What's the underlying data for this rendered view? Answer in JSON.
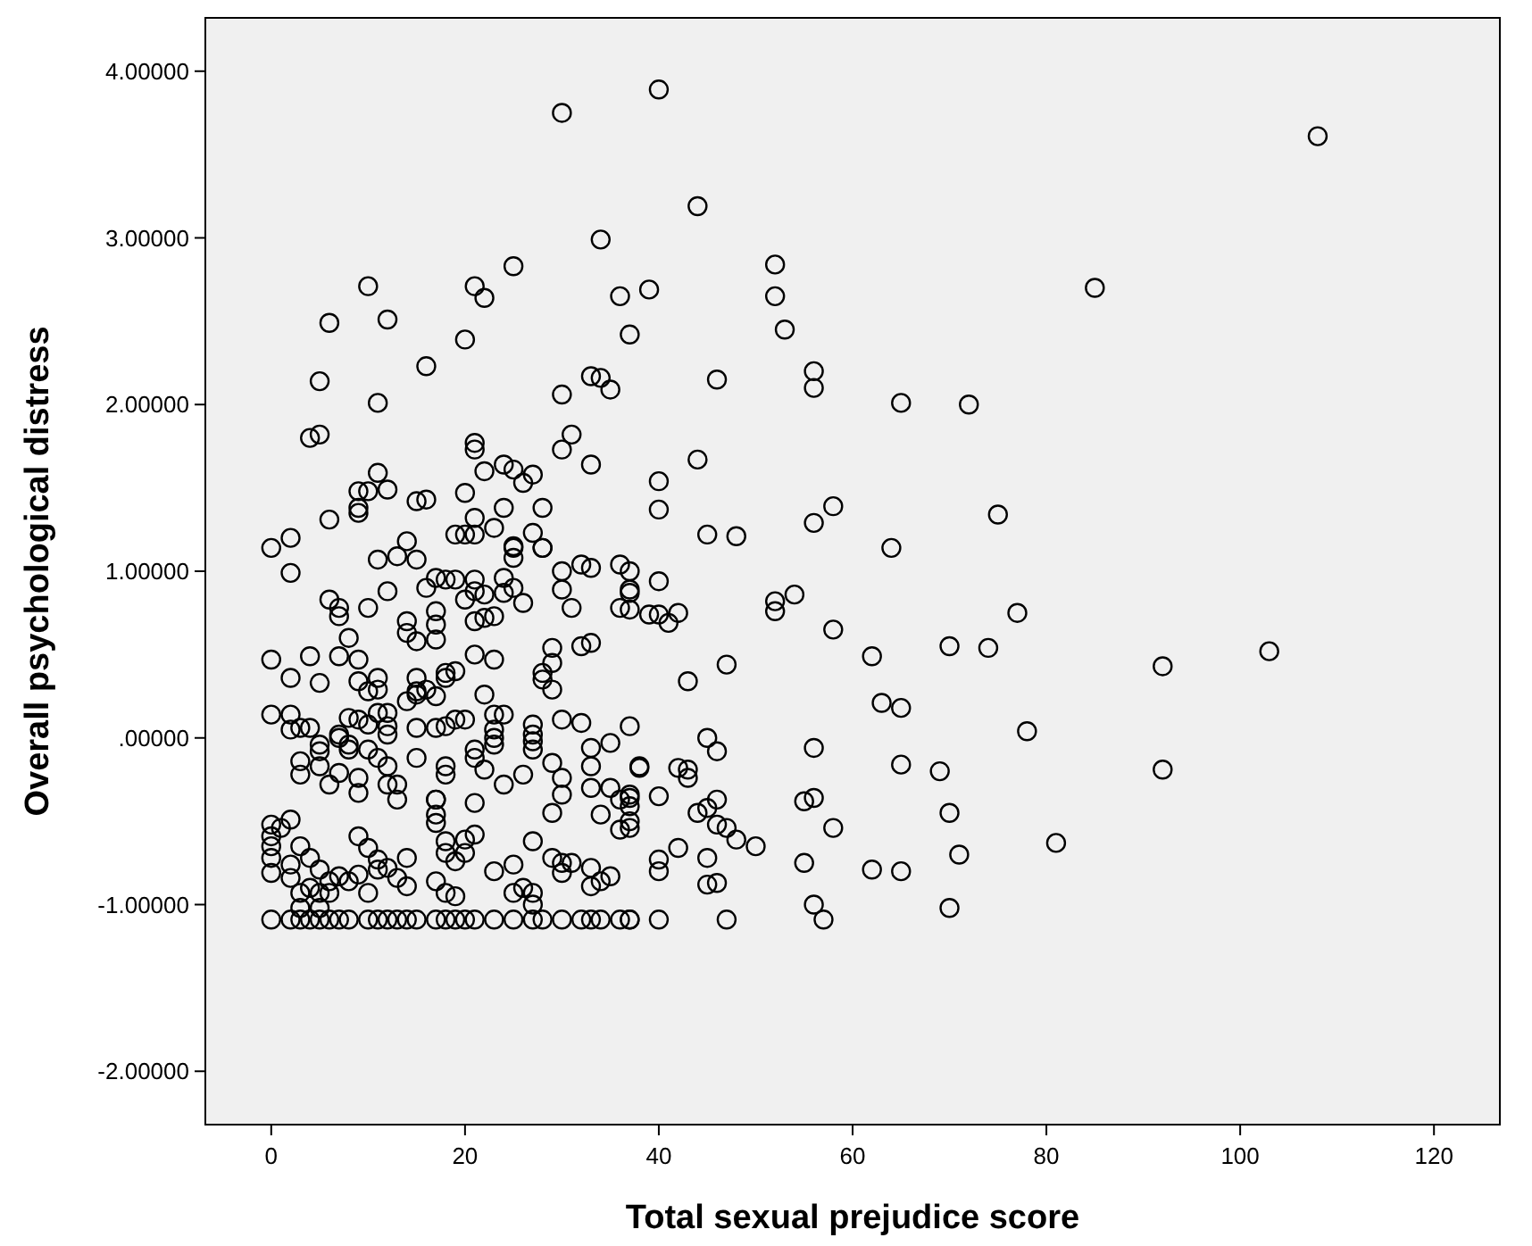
{
  "chart_data": {
    "type": "scatter",
    "xlabel": "Total sexual prejudice score",
    "ylabel": "Overall psychological distress",
    "xlim": [
      -6.8,
      126.8
    ],
    "ylim": [
      -2.32,
      4.32
    ],
    "xticks": [
      0,
      20,
      40,
      60,
      80,
      100,
      120
    ],
    "yticks": [
      {
        "value": -2,
        "label": "-2.00000"
      },
      {
        "value": -1,
        "label": "-1.00000"
      },
      {
        "value": 0,
        "label": ".00000"
      },
      {
        "value": 1,
        "label": "1.00000"
      },
      {
        "value": 2,
        "label": "2.00000"
      },
      {
        "value": 3,
        "label": "3.00000"
      },
      {
        "value": 4,
        "label": "4.00000"
      }
    ],
    "grid": false,
    "marker": "circle",
    "series": [
      {
        "color": "#000000",
        "x": [
          40,
          108,
          44,
          52,
          52,
          53,
          85,
          39,
          46,
          56,
          56,
          65,
          72,
          44,
          40,
          40,
          45,
          48,
          56,
          58,
          64,
          75,
          40,
          52,
          52,
          54,
          77,
          58,
          62,
          70,
          74,
          92,
          103,
          47,
          43,
          63,
          65,
          78,
          92,
          45,
          46,
          56,
          65,
          69,
          70,
          81,
          71,
          70,
          55,
          62,
          65,
          56,
          57,
          55,
          56,
          58,
          50,
          48,
          47,
          46,
          46,
          44,
          45,
          42,
          40,
          40,
          45,
          45,
          46,
          40,
          47,
          40,
          43,
          42,
          43,
          38,
          39,
          40,
          41,
          42,
          37,
          37,
          37,
          37,
          37,
          37,
          37,
          38,
          30,
          34,
          25,
          10,
          21,
          22,
          36,
          37,
          6,
          12,
          20,
          5,
          16,
          11,
          33,
          34,
          35,
          30,
          31,
          30,
          33,
          4,
          5,
          11,
          21,
          21,
          22,
          24,
          25,
          26,
          27,
          9,
          10,
          12,
          9,
          9,
          6,
          15,
          16,
          20,
          21,
          24,
          28,
          19,
          20,
          21,
          23,
          14,
          27,
          25,
          28,
          0,
          2,
          2,
          11,
          13,
          15,
          12,
          6,
          7,
          7,
          10,
          8,
          14,
          14,
          15,
          17,
          17,
          17,
          16,
          17,
          18,
          19,
          21,
          21,
          22,
          24,
          24,
          25,
          26,
          20,
          21,
          22,
          23,
          25,
          25,
          28,
          30,
          30,
          31,
          32,
          33,
          36,
          37,
          37,
          36,
          32,
          33,
          29,
          29,
          28,
          28,
          29,
          0,
          2,
          4,
          5,
          7,
          9,
          9,
          11,
          10,
          11,
          15,
          15,
          16,
          17,
          18,
          19,
          18,
          21,
          23,
          22,
          0,
          2,
          2,
          3,
          4,
          8,
          9,
          10,
          11,
          12,
          12,
          12,
          14,
          15,
          15,
          17,
          18,
          19,
          20,
          23,
          24,
          23,
          23,
          23,
          27,
          27,
          27,
          27,
          30,
          32,
          35,
          5,
          5,
          7,
          7,
          8,
          3,
          3,
          5,
          6,
          7,
          8,
          9,
          9,
          10,
          11,
          12,
          12,
          13,
          13,
          15,
          18,
          17,
          18,
          21,
          21,
          22,
          24,
          21,
          26,
          29,
          30,
          30,
          29,
          33,
          33,
          33,
          35,
          34,
          37,
          36,
          37,
          36,
          0,
          0,
          0,
          0,
          0,
          1,
          2,
          2,
          2,
          3,
          4,
          5,
          6,
          7,
          8,
          3,
          4,
          5,
          6,
          9,
          10,
          11,
          12,
          13,
          14,
          14,
          9,
          10,
          11,
          17,
          17,
          17,
          18,
          18,
          19,
          20,
          20,
          21,
          17,
          18,
          19,
          23,
          25,
          25,
          26,
          27,
          27,
          30,
          30,
          31,
          33,
          33,
          34,
          35,
          27,
          29,
          3,
          5,
          0,
          2,
          3,
          4,
          5,
          6,
          7,
          8,
          10,
          11,
          12,
          13,
          14,
          15,
          17,
          18,
          19,
          20,
          21,
          23,
          25,
          27,
          28,
          30,
          32,
          33,
          34,
          36,
          37
        ],
        "values": [
          3.89,
          3.61,
          3.19,
          2.84,
          2.65,
          2.45,
          2.7,
          2.69,
          2.15,
          2.2,
          2.1,
          2.01,
          2.0,
          1.67,
          1.54,
          1.37,
          1.22,
          1.21,
          1.29,
          1.39,
          1.14,
          1.34,
          0.94,
          0.82,
          0.76,
          0.86,
          0.75,
          0.65,
          0.49,
          0.55,
          0.54,
          0.43,
          0.52,
          0.44,
          0.34,
          0.21,
          0.18,
          0.04,
          -0.19,
          0.0,
          -0.08,
          -0.06,
          -0.16,
          -0.2,
          -0.45,
          -0.63,
          -0.7,
          -1.02,
          -0.75,
          -0.79,
          -0.8,
          -1.0,
          -1.09,
          -0.38,
          -0.36,
          -0.54,
          -0.65,
          -0.61,
          -0.54,
          -0.52,
          -0.37,
          -0.45,
          -0.42,
          -0.66,
          -0.73,
          -0.8,
          -0.72,
          -0.88,
          -0.87,
          -1.09,
          -1.09,
          -0.35,
          -0.24,
          -0.18,
          -0.19,
          -0.18,
          0.74,
          0.74,
          0.69,
          0.75,
          0.87,
          0.77,
          0.07,
          -0.36,
          -0.41,
          -0.54,
          -1.09,
          -0.17,
          3.75,
          2.99,
          2.83,
          2.71,
          2.71,
          2.64,
          2.65,
          2.42,
          2.49,
          2.51,
          2.39,
          2.14,
          2.23,
          2.01,
          2.17,
          2.16,
          2.09,
          2.06,
          1.82,
          1.73,
          1.64,
          1.8,
          1.82,
          1.59,
          1.77,
          1.73,
          1.6,
          1.64,
          1.61,
          1.53,
          1.58,
          1.48,
          1.48,
          1.49,
          1.38,
          1.35,
          1.31,
          1.42,
          1.43,
          1.47,
          1.32,
          1.38,
          1.38,
          1.22,
          1.22,
          1.22,
          1.26,
          1.18,
          1.23,
          1.14,
          1.14,
          1.14,
          1.2,
          0.99,
          1.07,
          1.09,
          1.07,
          0.88,
          0.83,
          0.78,
          0.73,
          0.78,
          0.6,
          0.7,
          0.63,
          0.58,
          0.76,
          0.68,
          0.59,
          0.9,
          0.96,
          0.95,
          0.95,
          0.95,
          0.88,
          0.86,
          0.96,
          0.87,
          0.9,
          0.81,
          0.83,
          0.7,
          0.72,
          0.73,
          1.15,
          1.08,
          1.14,
          1.0,
          0.89,
          0.78,
          1.04,
          1.02,
          1.04,
          1.0,
          0.89,
          0.78,
          0.55,
          0.57,
          0.54,
          0.45,
          0.39,
          0.35,
          0.29,
          0.47,
          0.36,
          0.49,
          0.33,
          0.49,
          0.47,
          0.34,
          0.36,
          0.28,
          0.29,
          0.36,
          0.28,
          0.29,
          0.25,
          0.39,
          0.4,
          0.36,
          0.5,
          0.47,
          0.26,
          0.14,
          0.14,
          0.05,
          0.06,
          0.06,
          0.12,
          0.11,
          0.08,
          0.15,
          0.15,
          0.07,
          0.02,
          0.22,
          0.26,
          0.06,
          0.06,
          0.07,
          0.11,
          0.11,
          0.14,
          0.14,
          0.05,
          0.0,
          -0.04,
          0.08,
          0.02,
          -0.02,
          -0.07,
          0.11,
          0.09,
          -0.03,
          -0.04,
          -0.08,
          0.02,
          0.0,
          -0.04,
          -0.14,
          -0.22,
          -0.17,
          -0.28,
          -0.21,
          -0.07,
          -0.24,
          -0.33,
          -0.07,
          -0.12,
          -0.17,
          -0.28,
          -0.28,
          -0.37,
          -0.12,
          -0.22,
          -0.37,
          -0.17,
          -0.07,
          -0.12,
          -0.19,
          -0.28,
          -0.39,
          -0.22,
          -0.15,
          -0.24,
          -0.34,
          -0.45,
          -0.06,
          -0.17,
          -0.3,
          -0.3,
          -0.46,
          -0.34,
          -0.37,
          -0.5,
          -0.55,
          -0.52,
          -0.59,
          -0.65,
          -0.72,
          -0.81,
          -0.54,
          -0.49,
          -0.76,
          -0.84,
          -0.65,
          -0.72,
          -0.79,
          -0.86,
          -0.83,
          -0.86,
          -0.93,
          -0.9,
          -0.93,
          -0.93,
          -0.59,
          -0.66,
          -0.73,
          -0.78,
          -0.84,
          -0.72,
          -0.89,
          -0.82,
          -0.93,
          -0.79,
          -0.37,
          -0.46,
          -0.51,
          -0.62,
          -0.69,
          -0.74,
          -0.61,
          -0.69,
          -0.58,
          -0.86,
          -0.93,
          -0.95,
          -0.8,
          -0.76,
          -0.93,
          -0.9,
          -0.93,
          -1.0,
          -0.75,
          -0.81,
          -0.75,
          -0.78,
          -0.89,
          -0.86,
          -0.83,
          -0.62,
          -0.72,
          -1.02,
          -1.02,
          -1.09,
          -1.09,
          -1.09,
          -1.09,
          -1.09,
          -1.09,
          -1.09,
          -1.09,
          -1.09,
          -1.09,
          -1.09,
          -1.09,
          -1.09,
          -1.09,
          -1.09,
          -1.09,
          -1.09,
          -1.09,
          -1.09,
          -1.09,
          -1.09,
          -1.09,
          -1.09,
          -1.09,
          -1.09,
          -1.09,
          -1.09,
          -1.09,
          -1.09
        ]
      }
    ]
  }
}
